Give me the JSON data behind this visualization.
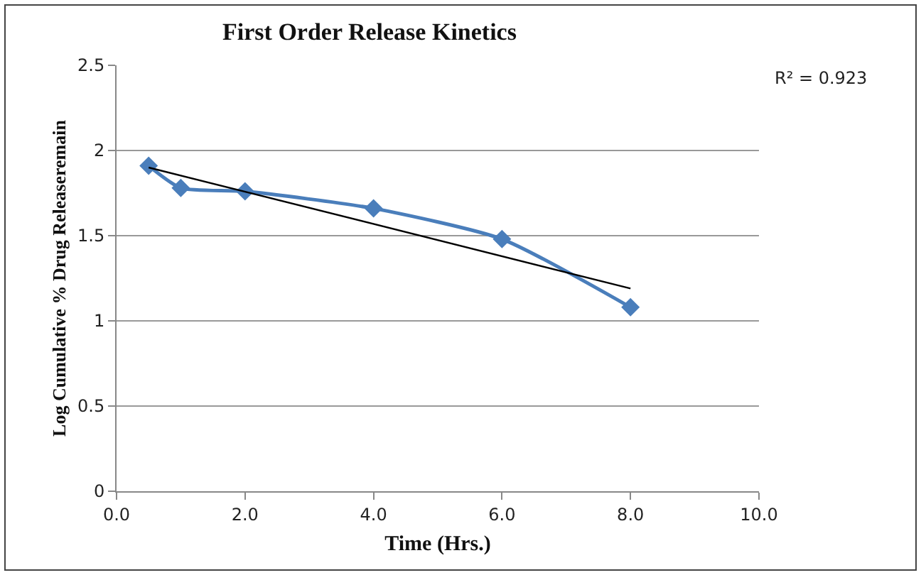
{
  "chart_data": {
    "type": "line",
    "title": "First Order Release Kinetics",
    "xlabel": "Time (Hrs.)",
    "ylabel": "Log Cumulative % Drug Releaseremain",
    "x": [
      0.5,
      1,
      2,
      4,
      6,
      8
    ],
    "series": [
      {
        "name": null,
        "color": "#4a7ebb",
        "values": [
          1.91,
          1.78,
          1.76,
          1.66,
          1.48,
          1.08
        ],
        "marker": "diamond"
      },
      {
        "type": "line",
        "color": "#000000",
        "x": [
          0.5,
          8
        ],
        "values": [
          1.9,
          1.19
        ],
        "marker": "none"
      }
    ],
    "xlim": [
      0,
      10
    ],
    "xticks": [
      {
        "value": 0,
        "label": "0.0"
      },
      {
        "value": 2,
        "label": "2.0"
      },
      {
        "value": 4,
        "label": "4.0"
      },
      {
        "value": 6,
        "label": "6.0"
      },
      {
        "value": 8,
        "label": "8.0"
      },
      {
        "value": 10,
        "label": "10.0"
      }
    ],
    "ylim": [
      0,
      2.5
    ],
    "yticks": [
      0,
      0.5,
      1,
      1.5,
      2,
      2.5
    ],
    "grid": "y",
    "annotations": [
      "R² = 0.923"
    ]
  }
}
